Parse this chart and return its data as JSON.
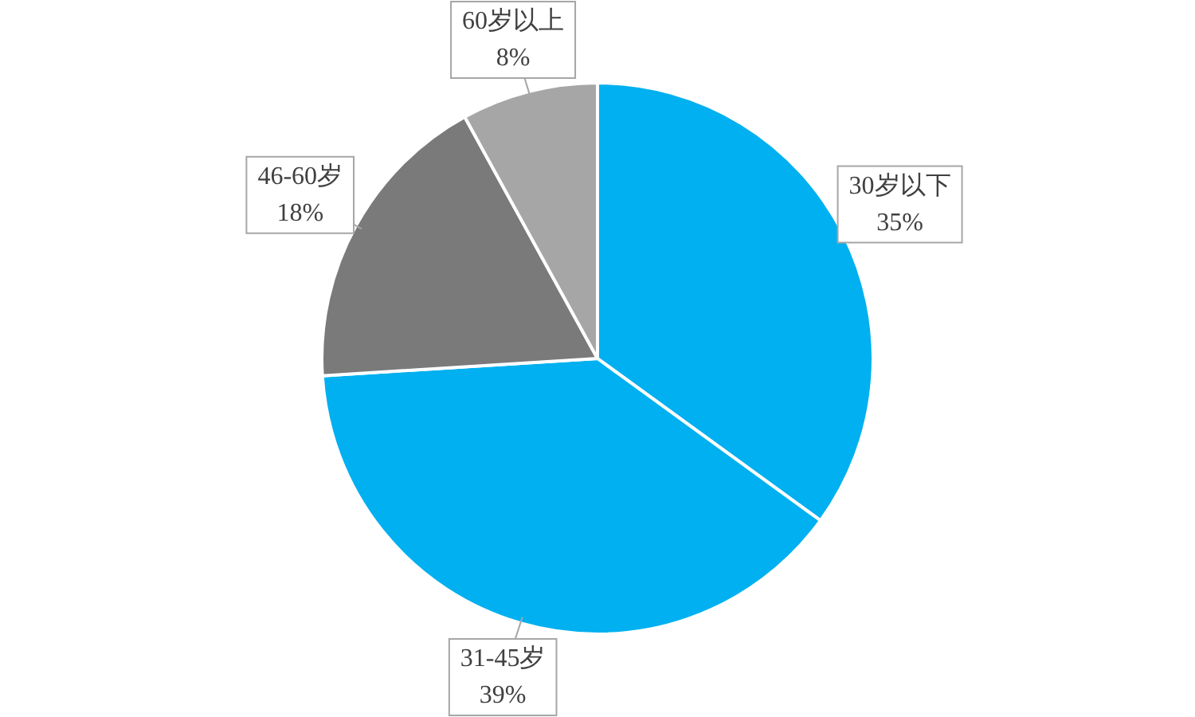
{
  "chart_data": {
    "type": "pie",
    "categories": [
      "30岁以下",
      "31-45岁",
      "46-60岁",
      "60岁以上"
    ],
    "values": [
      35,
      39,
      18,
      8
    ],
    "colors": [
      "#00b0f0",
      "#00b0f0",
      "#7a7a7a",
      "#a6a6a6"
    ],
    "value_labels": [
      "35%",
      "39%",
      "18%",
      "8%"
    ],
    "legend": false
  }
}
